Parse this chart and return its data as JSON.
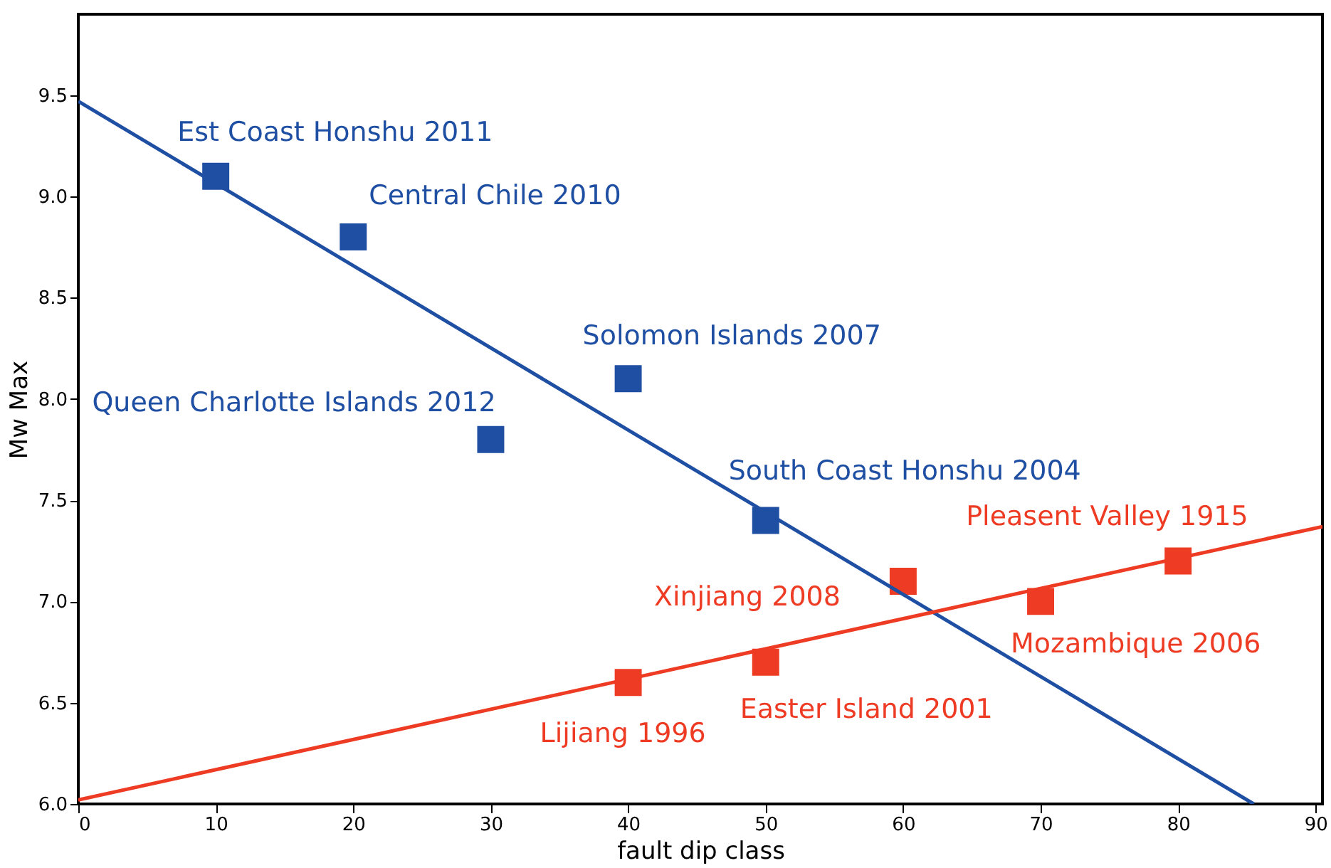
{
  "chart_data": {
    "type": "scatter",
    "xlabel": "fault dip class",
    "ylabel": "Mw Max",
    "marker": "square",
    "grid": false,
    "xlim": [
      0,
      90.5
    ],
    "xticks": [
      0,
      10,
      20,
      30,
      40,
      50,
      60,
      70,
      80,
      90
    ],
    "ylim": [
      6,
      9.9
    ],
    "yticks": [
      {
        "value": 6,
        "label": "6.0"
      },
      {
        "value": 6.5,
        "label": "6.5"
      },
      {
        "value": 7,
        "label": "7.0"
      },
      {
        "value": 7.5,
        "label": "7.5"
      },
      {
        "value": 8,
        "label": "8.0"
      },
      {
        "value": 8.5,
        "label": "8.5"
      },
      {
        "value": 9,
        "label": "9.0"
      },
      {
        "value": 9.5,
        "label": "9.5"
      }
    ],
    "series": [
      {
        "color": "#1f4fa3",
        "x": [
          10,
          20,
          30,
          40,
          50
        ],
        "values": [
          9.1,
          8.8,
          7.8,
          8.1,
          7.4
        ]
      },
      {
        "color": "#ee3b24",
        "x": [
          40,
          50,
          60,
          70,
          80
        ],
        "values": [
          6.6,
          6.7,
          7.1,
          7.0,
          7.2
        ]
      },
      {
        "type": "line",
        "marker": "none",
        "color": "#1f4fa3",
        "x": [
          0,
          85.5
        ],
        "values": [
          9.47,
          6.0
        ]
      },
      {
        "type": "line",
        "marker": "none",
        "color": "#ee3b24",
        "x": [
          0,
          90.5
        ],
        "values": [
          6.02,
          7.37
        ]
      }
    ],
    "annotations": [
      {
        "text": "Est Coast Honshu 2011",
        "x": 10,
        "y": 9.1
      },
      {
        "text": "Central Chile 2010",
        "x": 20,
        "y": 8.8
      },
      {
        "text": "Queen Charlotte Islands 2012",
        "x": 30,
        "y": 7.8
      },
      {
        "text": "Solomon Islands 2007",
        "x": 40,
        "y": 8.1
      },
      {
        "text": "South Coast Honshu 2004",
        "x": 50,
        "y": 7.4
      },
      {
        "text": "Lijiang 1996",
        "x": 40,
        "y": 6.6
      },
      {
        "text": "Easter Island 2001",
        "x": 50,
        "y": 6.7
      },
      {
        "text": "Xinjiang 2008",
        "x": 60,
        "y": 7.1
      },
      {
        "text": "Mozambique 2006",
        "x": 70,
        "y": 7.0
      },
      {
        "text": "Pleasent Valley 1915",
        "x": 80,
        "y": 7.2
      }
    ]
  }
}
